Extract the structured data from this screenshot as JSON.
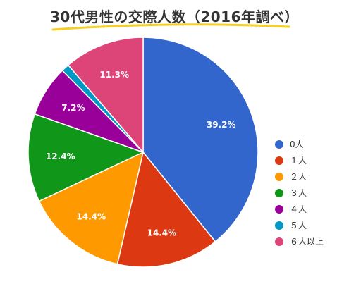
{
  "chart_data": {
    "type": "pie",
    "title": "30代男性の交際人数（2016年調べ）",
    "categories": [
      "0人",
      "１人",
      "２人",
      "３人",
      "４人",
      "５人",
      "６人以上"
    ],
    "values": [
      39.2,
      14.4,
      14.4,
      12.4,
      7.2,
      1.1,
      11.3
    ],
    "labels": [
      "39.2%",
      "14.4%",
      "14.4%",
      "12.4%",
      "7.2%",
      "",
      "11.3%"
    ],
    "colors": [
      "#3366cc",
      "#dc3912",
      "#ff9900",
      "#109618",
      "#990099",
      "#0099c6",
      "#dd4477"
    ],
    "start_angle_deg": 0,
    "direction": "clockwise",
    "legend_position": "right"
  }
}
